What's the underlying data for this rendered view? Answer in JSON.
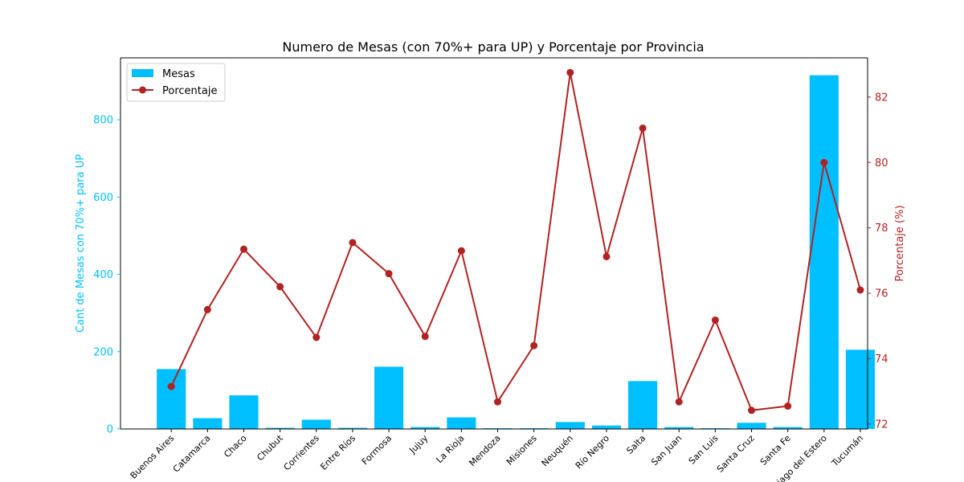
{
  "chart_data": {
    "type": "bar",
    "title": "Numero de Mesas (con 70%+ para UP) y Porcentaje por Provincia",
    "xlabel": "",
    "ylabel_left": "Cant de Mesas con 70%+ para UP",
    "ylabel_right": "Porcentaje (%)",
    "categories": [
      "Buenos Aires",
      "Catamarca",
      "Chaco",
      "Chubut",
      "Corrientes",
      "Entre Ríos",
      "Formosa",
      "Jujuy",
      "La Rioja",
      "Mendoza",
      "Misiones",
      "Neuquén",
      "Río Negro",
      "Salta",
      "San Juan",
      "San Luis",
      "Santa Cruz",
      "Santa Fe",
      "Santiago del Estero",
      "Tucumán"
    ],
    "series": [
      {
        "name": "Mesas",
        "type": "bar",
        "axis": "left",
        "color": "#00bfff",
        "values": [
          155,
          28,
          87,
          3,
          24,
          3,
          161,
          5,
          30,
          2,
          2,
          18,
          9,
          124,
          5,
          2,
          16,
          5,
          915,
          205
        ]
      },
      {
        "name": "Porcentaje",
        "type": "line",
        "axis": "right",
        "color": "#b22222",
        "values": [
          73.15,
          75.5,
          77.35,
          76.2,
          74.65,
          77.55,
          76.6,
          74.68,
          77.3,
          72.68,
          74.4,
          82.75,
          77.12,
          81.05,
          72.68,
          75.18,
          72.42,
          72.55,
          80.0,
          76.1
        ]
      }
    ],
    "ylim_left": [
      0,
      960
    ],
    "ylim_right": [
      71.85,
      83.2
    ],
    "yticks_left": [
      "0",
      "200",
      "400",
      "600",
      "800"
    ],
    "yticks_right": [
      "72",
      "74",
      "76",
      "78",
      "80",
      "82"
    ],
    "grid": false,
    "legend": "top-left"
  }
}
